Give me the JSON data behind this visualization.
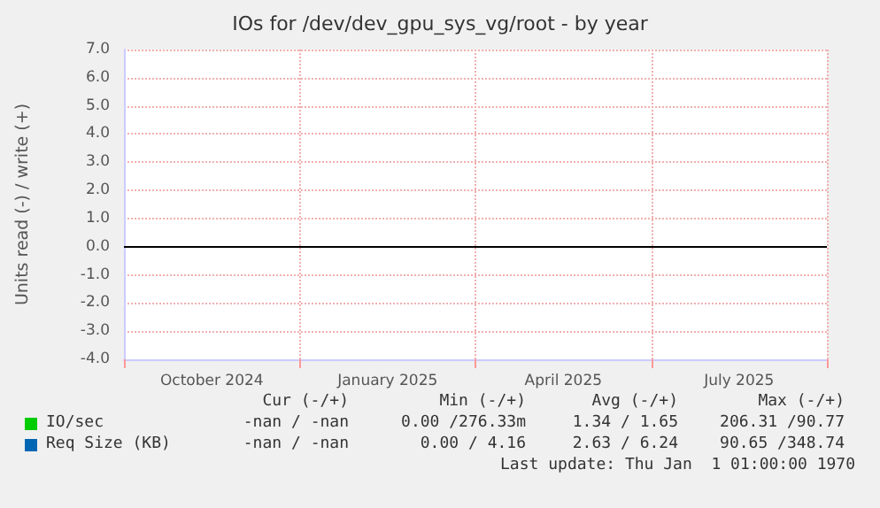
{
  "chart_data": {
    "type": "line",
    "title": "IOs for /dev/dev_gpu_sys_vg/root - by year",
    "ylabel": "Units read (-) / write (+)",
    "categories": [
      "October 2024",
      "January 2025",
      "April 2025",
      "July 2025"
    ],
    "ylim": [
      -4,
      7
    ],
    "yticks": [
      {
        "value": -4,
        "label": "-4.0"
      },
      {
        "value": -3,
        "label": "-3.0"
      },
      {
        "value": -2,
        "label": "-2.0"
      },
      {
        "value": -1,
        "label": "-1.0"
      },
      {
        "value": 0,
        "label": "0.0"
      },
      {
        "value": 1,
        "label": "1.0"
      },
      {
        "value": 2,
        "label": "2.0"
      },
      {
        "value": 3,
        "label": "3.0"
      },
      {
        "value": 4,
        "label": "4.0"
      },
      {
        "value": 5,
        "label": "5.0"
      },
      {
        "value": 6,
        "label": "6.0"
      },
      {
        "value": 7,
        "label": "7.0"
      }
    ],
    "grid": true,
    "legend": "bottom left",
    "ref_lines": [
      {
        "axis": "y",
        "value": 0,
        "color": "#000000"
      }
    ],
    "series": [
      {
        "name": "IO/sec",
        "color": "#00cc00",
        "values": [
          null,
          null,
          null,
          null
        ]
      },
      {
        "name": "Req Size (KB)",
        "color": "#0066b3",
        "values": [
          null,
          null,
          null,
          null
        ]
      }
    ],
    "annotations": [
      "Cur (-/+)",
      "Min (-/+)",
      "Avg (-/+)",
      "Max (-/+)",
      "-nan / -nan",
      "0.00 /276.33m",
      "1.34 / 1.65",
      "206.31 /90.77",
      "-nan / -nan",
      "0.00 / 4.16",
      "2.63 / 6.24",
      "90.65 /348.74",
      "Last update: Thu Jan  1 01:00:00 1970"
    ]
  }
}
